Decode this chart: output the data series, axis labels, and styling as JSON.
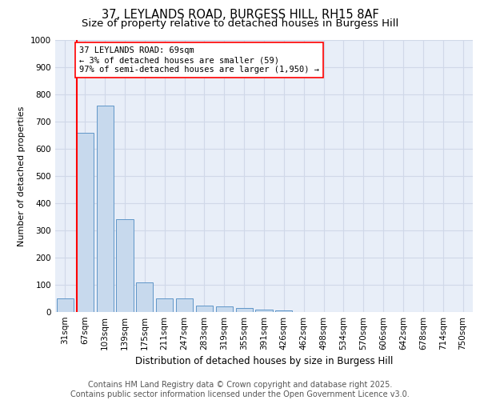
{
  "title1": "37, LEYLANDS ROAD, BURGESS HILL, RH15 8AF",
  "title2": "Size of property relative to detached houses in Burgess Hill",
  "xlabel": "Distribution of detached houses by size in Burgess Hill",
  "ylabel": "Number of detached properties",
  "bin_labels": [
    "31sqm",
    "67sqm",
    "103sqm",
    "139sqm",
    "175sqm",
    "211sqm",
    "247sqm",
    "283sqm",
    "319sqm",
    "355sqm",
    "391sqm",
    "426sqm",
    "462sqm",
    "498sqm",
    "534sqm",
    "570sqm",
    "606sqm",
    "642sqm",
    "678sqm",
    "714sqm",
    "750sqm"
  ],
  "bar_heights": [
    50,
    660,
    760,
    340,
    110,
    50,
    50,
    25,
    20,
    15,
    10,
    5,
    0,
    0,
    0,
    0,
    0,
    0,
    0,
    0,
    0
  ],
  "bar_color": "#c7d9ed",
  "bar_edge_color": "#6096c8",
  "vline_color": "red",
  "annotation_text": "37 LEYLANDS ROAD: 69sqm\n← 3% of detached houses are smaller (59)\n97% of semi-detached houses are larger (1,950) →",
  "annotation_box_color": "white",
  "annotation_box_edge_color": "red",
  "ylim": [
    0,
    1000
  ],
  "yticks": [
    0,
    100,
    200,
    300,
    400,
    500,
    600,
    700,
    800,
    900,
    1000
  ],
  "grid_color": "#d0d8e8",
  "bg_color": "#e8eef8",
  "footer_text": "Contains HM Land Registry data © Crown copyright and database right 2025.\nContains public sector information licensed under the Open Government Licence v3.0.",
  "title_fontsize": 10.5,
  "subtitle_fontsize": 9.5,
  "ylabel_fontsize": 8,
  "xlabel_fontsize": 8.5,
  "tick_fontsize": 7.5,
  "annot_fontsize": 7.5,
  "footer_fontsize": 7
}
